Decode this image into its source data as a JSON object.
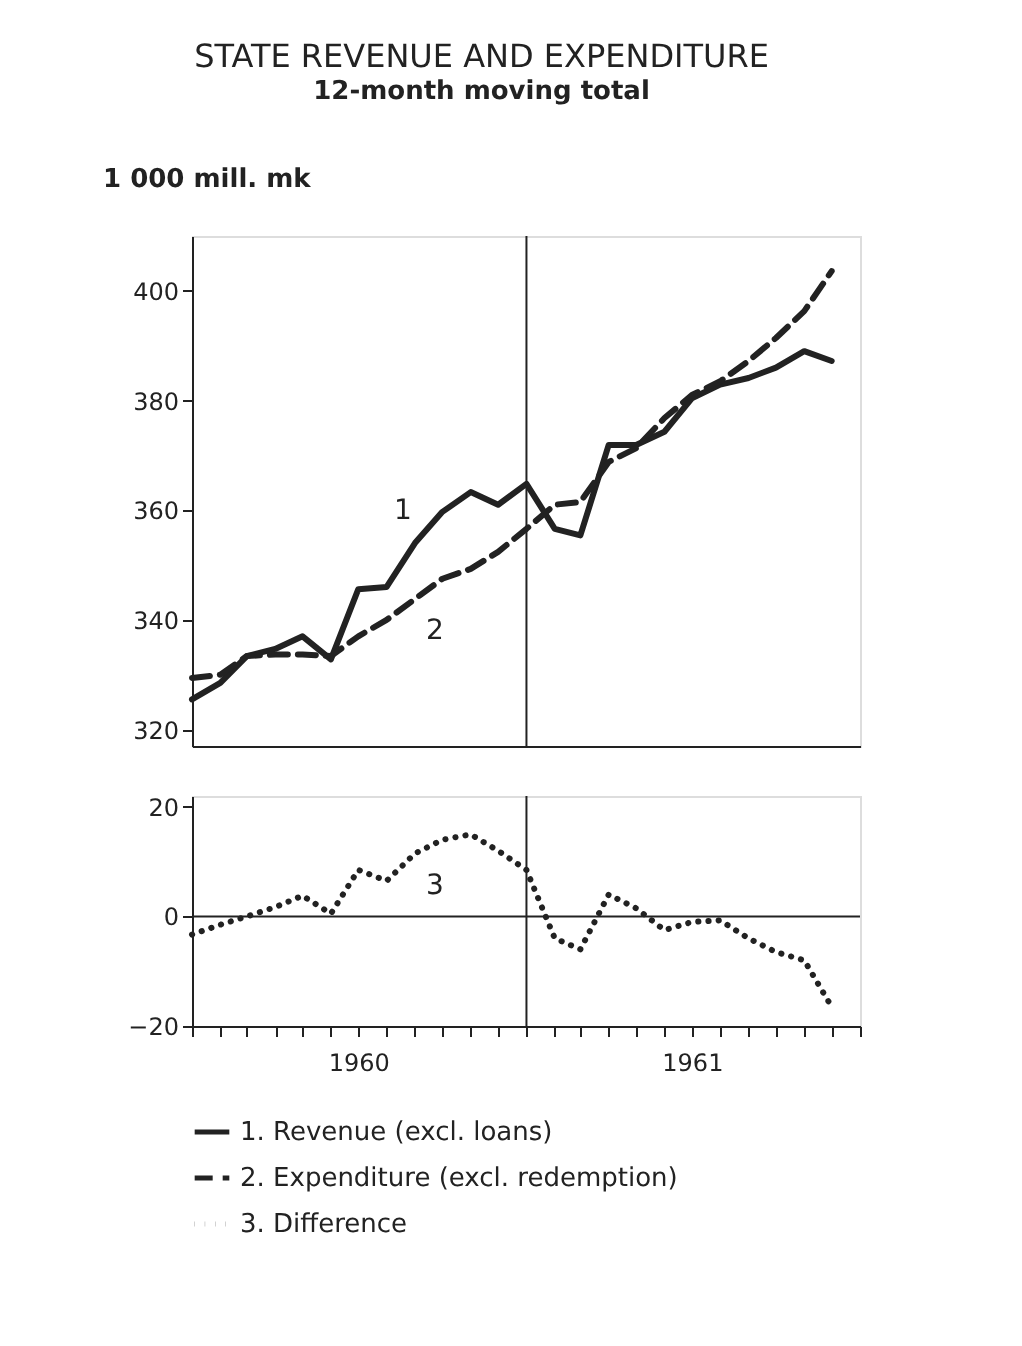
{
  "chart_data": [
    {
      "type": "line",
      "title": "STATE REVENUE AND EXPENDITURE",
      "subtitle": "12-month moving total",
      "ylabel": "1 000 mill. mk",
      "x": [
        "1960-01",
        "1960-02",
        "1960-03",
        "1960-04",
        "1960-05",
        "1960-06",
        "1960-07",
        "1960-08",
        "1960-09",
        "1960-10",
        "1960-11",
        "1960-12",
        "1961-01",
        "1961-02",
        "1961-03",
        "1961-04",
        "1961-05",
        "1961-06",
        "1961-07",
        "1961-08",
        "1961-09",
        "1961-10",
        "1961-11",
        "1961-12"
      ],
      "series": [
        {
          "name": "1. Revenue (excl. loans)",
          "color": "#222222",
          "line_style": "solid",
          "values": [
            325.5,
            328.5,
            333.4,
            334.7,
            337,
            332.8,
            345.6,
            346,
            354,
            359.7,
            363.3,
            361,
            364.8,
            356.6,
            355.4,
            371.9,
            371.9,
            374.3,
            380.4,
            382.9,
            384.1,
            386,
            389,
            387.2
          ]
        },
        {
          "name": "2. Expenditure (excl. redemption)",
          "color": "#222222",
          "line_style": "dashed",
          "values": [
            329.4,
            330,
            333.4,
            333.7,
            333.7,
            333.4,
            337,
            340,
            343.8,
            347.5,
            349.3,
            352.4,
            356.6,
            361,
            361.5,
            368.8,
            371.3,
            376.8,
            381,
            383.5,
            387.2,
            391.4,
            396.3,
            403.6
          ]
        }
      ],
      "annotations": [
        {
          "text": "1",
          "x": "1960-09",
          "y": 354
        },
        {
          "text": "2",
          "x": "1960-09",
          "y": 343.8
        }
      ],
      "xlim": [
        "1960-01",
        "1962-01"
      ],
      "ylim": [
        317,
        410
      ],
      "yticks": [
        320,
        340,
        360,
        380,
        400
      ],
      "tick_labels": "y",
      "grid": false,
      "legend": "bottom",
      "ref_lines": [
        {
          "axis": "x",
          "value": "1961-01",
          "color": "#222222"
        }
      ]
    },
    {
      "type": "line",
      "x": [
        "1960-01",
        "1960-02",
        "1960-03",
        "1960-04",
        "1960-05",
        "1960-06",
        "1960-07",
        "1960-08",
        "1960-09",
        "1960-10",
        "1960-11",
        "1960-12",
        "1961-01",
        "1961-02",
        "1961-03",
        "1961-04",
        "1961-05",
        "1961-06",
        "1961-07",
        "1961-08",
        "1961-09",
        "1961-10",
        "1961-11",
        "1961-12"
      ],
      "series": [
        {
          "name": "3. Difference",
          "color": "#222222",
          "line_style": "dotted",
          "values": [
            -3.3,
            -1.5,
            0,
            1.7,
            3.8,
            0.5,
            8.5,
            6.5,
            11.5,
            14,
            15,
            12,
            8.5,
            -4,
            -6,
            4,
            1.5,
            -2.5,
            -1,
            -0.7,
            -4,
            -6.5,
            -8,
            -16.5
          ]
        }
      ],
      "annotations": [
        {
          "text": "3",
          "x": "1960-09",
          "y": 11.5
        }
      ],
      "xlim": [
        "1960-01",
        "1962-01"
      ],
      "ylim": [
        -20,
        22
      ],
      "yticks": [
        -20,
        0,
        20
      ],
      "xticks": [
        {
          "value": "1960-01",
          "label": null
        },
        {
          "value": "1960-02",
          "label": null
        },
        {
          "value": "1960-03",
          "label": null
        },
        {
          "value": "1960-04",
          "label": null
        },
        {
          "value": "1960-05",
          "label": null
        },
        {
          "value": "1960-06",
          "label": null
        },
        {
          "value": "1960-07",
          "label": "1960"
        },
        {
          "value": "1960-08",
          "label": null
        },
        {
          "value": "1960-09",
          "label": null
        },
        {
          "value": "1960-10",
          "label": null
        },
        {
          "value": "1960-11",
          "label": null
        },
        {
          "value": "1960-12",
          "label": null
        },
        {
          "value": "1961-01",
          "label": null
        },
        {
          "value": "1961-02",
          "label": null
        },
        {
          "value": "1961-03",
          "label": null
        },
        {
          "value": "1961-04",
          "label": null
        },
        {
          "value": "1961-05",
          "label": null
        },
        {
          "value": "1961-06",
          "label": null
        },
        {
          "value": "1961-07",
          "label": "1961"
        },
        {
          "value": "1961-08",
          "label": null
        },
        {
          "value": "1961-09",
          "label": null
        },
        {
          "value": "1961-10",
          "label": null
        },
        {
          "value": "1961-11",
          "label": null
        },
        {
          "value": "1961-12",
          "label": null
        },
        {
          "value": "1962-01",
          "label": null
        }
      ],
      "grid": false,
      "legend": "bottom",
      "ref_lines": [
        {
          "axis": "x",
          "value": "1961-01",
          "color": "#222222"
        },
        {
          "axis": "y",
          "value": 0,
          "color": "#222222"
        }
      ]
    }
  ]
}
